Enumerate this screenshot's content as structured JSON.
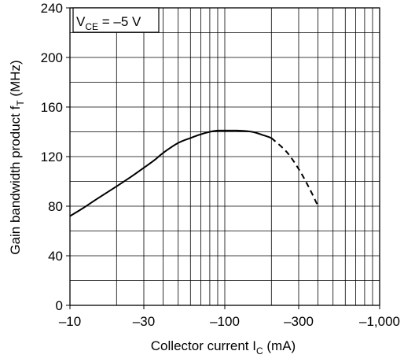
{
  "chart_data": {
    "type": "line",
    "title": "",
    "xlabel": "Collector current",
    "xlabel_symbol": "I",
    "xlabel_subscript": "C",
    "xlabel_unit": "(mA)",
    "ylabel": "Gain bandwidth product",
    "ylabel_symbol": "f",
    "ylabel_subscript": "T",
    "ylabel_unit": "(MHz)",
    "x_scale": "log",
    "x_axis_direction": "negative values, magnitude increases to the right",
    "xlim": [
      -10,
      -1000
    ],
    "ylim": [
      0,
      240
    ],
    "grid": true,
    "x_ticks": [
      -10,
      -30,
      -100,
      -300,
      -1000
    ],
    "x_tick_labels": [
      "–10",
      "–30",
      "–100",
      "–300",
      "–1,000"
    ],
    "y_ticks": [
      0,
      40,
      80,
      120,
      160,
      200,
      240
    ],
    "y_tick_labels": [
      "0",
      "40",
      "80",
      "120",
      "160",
      "200",
      "240"
    ],
    "annotation": {
      "symbol": "V",
      "subscript": "CE",
      "value": " = –5 V"
    },
    "series": [
      {
        "style": "solid",
        "x": [
          -10,
          -12,
          -15,
          -20,
          -25,
          -30,
          -35,
          -40,
          -50,
          -60,
          -70,
          -80,
          -90,
          -100,
          -120,
          -150,
          -180,
          -200
        ],
        "y": [
          72,
          78,
          86,
          96,
          104,
          111,
          117,
          123,
          131,
          135,
          138,
          140,
          141,
          141,
          141,
          140,
          137,
          135
        ]
      },
      {
        "style": "dashed",
        "x": [
          -200,
          -250,
          -300,
          -350,
          -400
        ],
        "y": [
          135,
          124,
          110,
          95,
          80
        ]
      }
    ]
  }
}
